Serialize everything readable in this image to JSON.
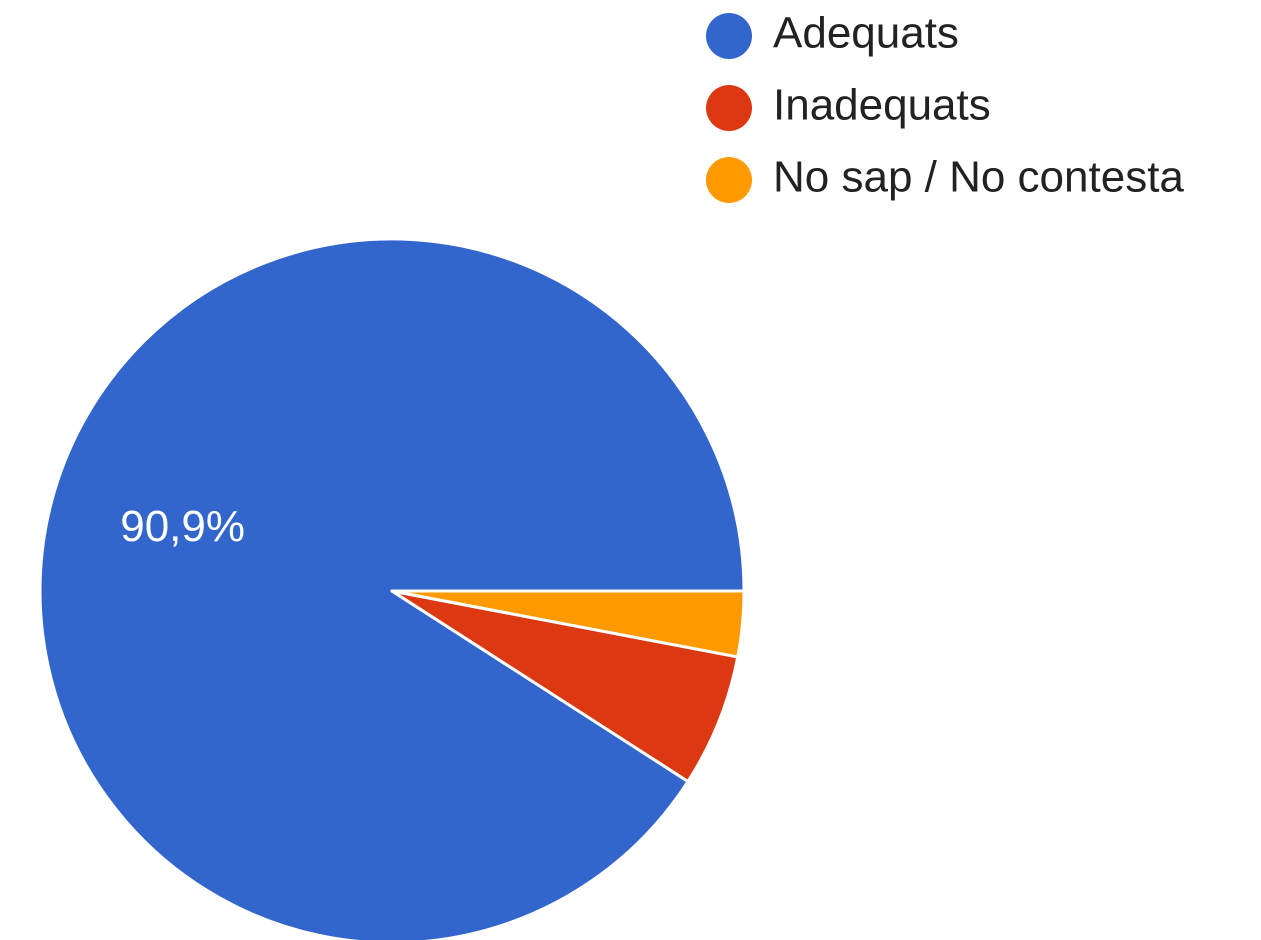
{
  "chart_data": {
    "type": "pie",
    "categories": [
      "Adequats",
      "Inadequats",
      "No sap / No contesta"
    ],
    "values": [
      90.9,
      6.1,
      3.0
    ],
    "colors": [
      "#3366cc",
      "#dc3912",
      "#ff9900"
    ],
    "data_labels": [
      "90,9%",
      "",
      ""
    ],
    "legend_position": "top-right",
    "start": "right, counter-clockwise"
  }
}
